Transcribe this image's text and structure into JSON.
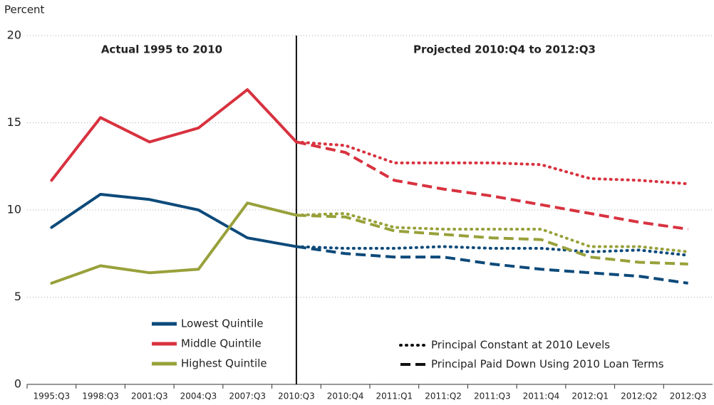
{
  "chart_data": {
    "type": "line",
    "y_label": "Percent",
    "annotations": [
      "Actual 1995 to 2010",
      "Projected 2010:Q4 to 2012:Q3"
    ],
    "categories": [
      "1995:Q3",
      "1998:Q3",
      "2001:Q3",
      "2004:Q3",
      "2007:Q3",
      "2010:Q3",
      "2010:Q4",
      "2011:Q1",
      "2011:Q2",
      "2011:Q3",
      "2011:Q4",
      "2012:Q1",
      "2012:Q2",
      "2012:Q3"
    ],
    "ylim": [
      0,
      20
    ],
    "yticks": [
      0,
      5,
      10,
      15,
      20
    ],
    "grid": true,
    "line_styles": [
      {
        "name": "Principal Constant at 2010 Levels",
        "dash": "dotted"
      },
      {
        "name": "Principal Paid Down Using 2010 Loan Terms",
        "dash": "dashed"
      }
    ],
    "series": [
      {
        "name": "Lowest Quintile",
        "color": "#0d4a7a",
        "values": [
          9.0,
          10.9,
          10.6,
          10.0,
          8.4,
          7.9,
          null,
          null,
          null,
          null,
          null,
          null,
          null,
          null
        ],
        "projections": [
          [
            null,
            null,
            null,
            null,
            null,
            7.9,
            7.8,
            7.8,
            7.9,
            7.8,
            7.8,
            7.6,
            7.7,
            7.4
          ],
          [
            null,
            null,
            null,
            null,
            null,
            7.9,
            7.5,
            7.3,
            7.3,
            6.9,
            6.6,
            6.4,
            6.2,
            5.8
          ]
        ]
      },
      {
        "name": "Middle Quintile",
        "color": "#d8323f",
        "values": [
          11.7,
          15.3,
          13.9,
          14.7,
          16.9,
          13.9,
          null,
          null,
          null,
          null,
          null,
          null,
          null,
          null
        ],
        "projections": [
          [
            null,
            null,
            null,
            null,
            null,
            13.9,
            13.7,
            12.7,
            12.7,
            12.7,
            12.6,
            11.8,
            11.7,
            11.5
          ],
          [
            null,
            null,
            null,
            null,
            null,
            13.9,
            13.3,
            11.7,
            11.2,
            10.8,
            10.3,
            9.8,
            9.3,
            8.9
          ]
        ]
      },
      {
        "name": "Highest Quintile",
        "color": "#98a13a",
        "values": [
          5.8,
          6.8,
          6.4,
          6.6,
          10.4,
          9.7,
          null,
          null,
          null,
          null,
          null,
          null,
          null,
          null
        ],
        "projections": [
          [
            null,
            null,
            null,
            null,
            null,
            9.7,
            9.8,
            9.0,
            8.9,
            8.9,
            8.9,
            7.9,
            7.9,
            7.6
          ],
          [
            null,
            null,
            null,
            null,
            null,
            9.7,
            9.6,
            8.8,
            8.6,
            8.4,
            8.3,
            7.3,
            7.0,
            6.9
          ]
        ]
      }
    ]
  }
}
